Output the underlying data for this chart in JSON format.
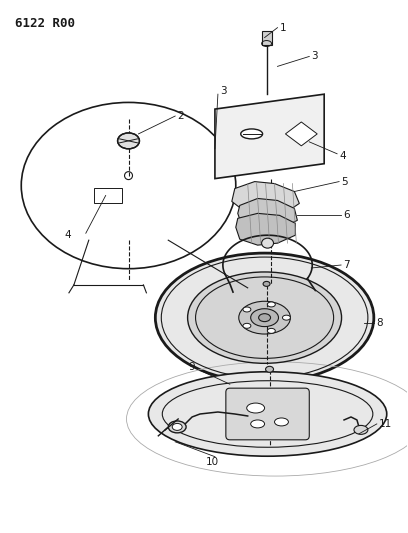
{
  "title": "6122 R00",
  "bg_color": "#ffffff",
  "lc": "#1a1a1a",
  "fig_width": 4.08,
  "fig_height": 5.33,
  "dpi": 100,
  "label_fs": 7.5
}
